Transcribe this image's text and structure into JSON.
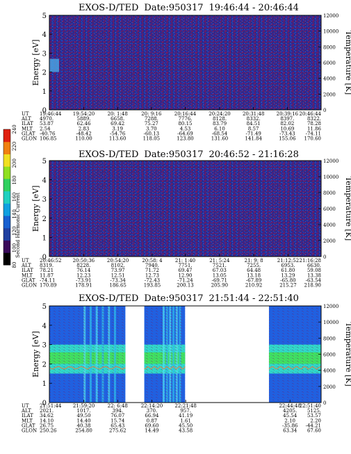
{
  "colors": {
    "panel_background": "#2a2a8e",
    "noise_a": "#7a1a5a",
    "noise_b": "#1a50c8",
    "gap": "#ffffff",
    "band_green": "#40e060",
    "band_cyan": "#30d8c8",
    "band_blue": "#2060e0",
    "trace": "#e08040"
  },
  "colorbar": {
    "label": "Second Harmonic Current",
    "ticks": [
      "80",
      "100",
      "120",
      "140",
      "160",
      "180",
      "200",
      "220",
      "240"
    ],
    "colors": [
      "#000000",
      "#3a0a5a",
      "#2040a0",
      "#1860d0",
      "#10a0e0",
      "#20d0c0",
      "#30d060",
      "#90e020",
      "#f0e020",
      "#f08010",
      "#e02010"
    ]
  },
  "chart_data": [
    {
      "type": "heatmap",
      "title_left": "EXOS-D/TED",
      "title_date": "Date:950317",
      "title_time": "19:46:44 - 20:46:44",
      "ylabel": "Energy [eV]",
      "ylabel_right": "Temperature [K]",
      "ylim": [
        0,
        5
      ],
      "yticks": [
        "0",
        "1",
        "2",
        "3",
        "4",
        "5"
      ],
      "ylim_right": [
        0,
        12000
      ],
      "yticks_right": [
        "0",
        "2000",
        "4000",
        "6000",
        "8000",
        "10000",
        "12000"
      ],
      "row_labels": [
        "UT",
        "ALT",
        "ILAT",
        "MLT",
        "GLAT",
        "GLON"
      ],
      "columns": [
        [
          "19:46:44",
          "4970.",
          "53.87",
          "2.54",
          "-40.76",
          "106.85"
        ],
        [
          "19:54:20",
          "5889.",
          "62.46",
          "2.83",
          "-48.42",
          "110.00"
        ],
        [
          "20: 1:48",
          "6658.",
          "69.42",
          "3.19",
          "-54.76",
          "113.60"
        ],
        [
          "20: 9:16",
          "7288.",
          "75.27",
          "3.70",
          "-60.13",
          "118.05"
        ],
        [
          "20:16:44",
          "7776.",
          "80.15",
          "4.53",
          "-64.69",
          "123.80"
        ],
        [
          "20:24:20",
          "8128.",
          "83.79",
          "6.10",
          "-68.54",
          "131.60"
        ],
        [
          "20:31:48",
          "8332.",
          "84.51",
          "8.57",
          "-71.49",
          "141.84"
        ],
        [
          "20:39:16",
          "8397.",
          "82.02",
          "10.69",
          "-73.43",
          "155.06"
        ],
        [
          "20:46:44",
          "8322.",
          "78.28",
          "11.86",
          "-74.11",
          "170.60"
        ]
      ]
    },
    {
      "type": "heatmap",
      "title_left": "EXOS-D/TED",
      "title_date": "Date:950317",
      "title_time": "20:46:52 - 21:16:28",
      "ylabel": "Energy [eV]",
      "ylabel_right": "Temperature [K]",
      "ylim": [
        0,
        5
      ],
      "yticks": [
        "0",
        "1",
        "2",
        "3",
        "4",
        "5"
      ],
      "ylim_right": [
        0,
        12000
      ],
      "yticks_right": [
        "0",
        "2000",
        "4000",
        "6000",
        "8000",
        "10000",
        "12000"
      ],
      "row_labels": [
        "UT",
        "ALT",
        "ILAT",
        "MLT",
        "GLAT",
        "GLON"
      ],
      "columns": [
        [
          "20:46:52",
          "8319.",
          "78.21",
          "11.87",
          "-74.11",
          "170.89"
        ],
        [
          "20:50:36",
          "8228.",
          "76.14",
          "12.23",
          "-73.91",
          "178.91"
        ],
        [
          "20:54:20",
          "8102.",
          "73.97",
          "12.51",
          "-73.34",
          "186.65"
        ],
        [
          "20:58: 4",
          "7940.",
          "71.72",
          "12.73",
          "-72.43",
          "193.85"
        ],
        [
          "21: 1:40",
          "7751.",
          "69.47",
          "12.90",
          "-71.24",
          "200.13"
        ],
        [
          "21: 5:24",
          "7521.",
          "67.03",
          "13.05",
          "-69.71",
          "205.90"
        ],
        [
          "21: 9: 8",
          "7255.",
          "64.48",
          "13.18",
          "-67.89",
          "210.92"
        ],
        [
          "21:12:52",
          "6953.",
          "61.80",
          "13.29",
          "-65.80",
          "215.27"
        ],
        [
          "21:16:28",
          "6630.",
          "59.08",
          "13.38",
          "-63.54",
          "218.90"
        ]
      ]
    },
    {
      "type": "heatmap",
      "title_left": "EXOS-D/TED",
      "title_date": "Date:950317",
      "title_time": "21:51:44 - 22:51:40",
      "ylabel": "Energy [eV]",
      "ylabel_right": "Temperature [K]",
      "ylim": [
        0,
        5
      ],
      "yticks": [
        "0",
        "1",
        "2",
        "3",
        "4",
        "5"
      ],
      "ylim_right": [
        0,
        12000
      ],
      "yticks_right": [
        "0",
        "2000",
        "4000",
        "6000",
        "8000",
        "10000",
        "12000"
      ],
      "row_labels": [
        "UT",
        "ALT",
        "ILAT",
        "MLT",
        "GLAT",
        "GLON"
      ],
      "columns": [
        [
          "21:51:44",
          "2021.",
          "34.62",
          "14.10",
          "26.75",
          "250.26"
        ],
        [
          "21:59:20",
          "1017.",
          "49.50",
          "14.40",
          "40.38",
          "254.80"
        ],
        [
          "22: 6:48",
          "394.",
          "76.07",
          "15.74",
          "65.43",
          "275.62"
        ],
        [
          "22:14:20",
          "370.",
          "66.94",
          "0.87",
          "69.60",
          "14.49"
        ],
        [
          "22:21:48",
          "957.",
          "41.19",
          "1.61",
          "45.50",
          "43.58"
        ],
        [
          "22:44:48",
          "4205.",
          "45.54",
          "2.10",
          "-35.86",
          "63.34"
        ],
        [
          "22:51:40",
          "5125.",
          "53.57",
          "2.20",
          "-44.21",
          "67.60"
        ]
      ],
      "data_intervals": [
        [
          "21:51:44",
          "22: 8:30"
        ],
        [
          "22:12:40",
          "22:21:40"
        ],
        [
          "22:40:10",
          "22:51:40"
        ]
      ],
      "band_energy_ev": [
        2.0,
        2.6
      ]
    }
  ]
}
